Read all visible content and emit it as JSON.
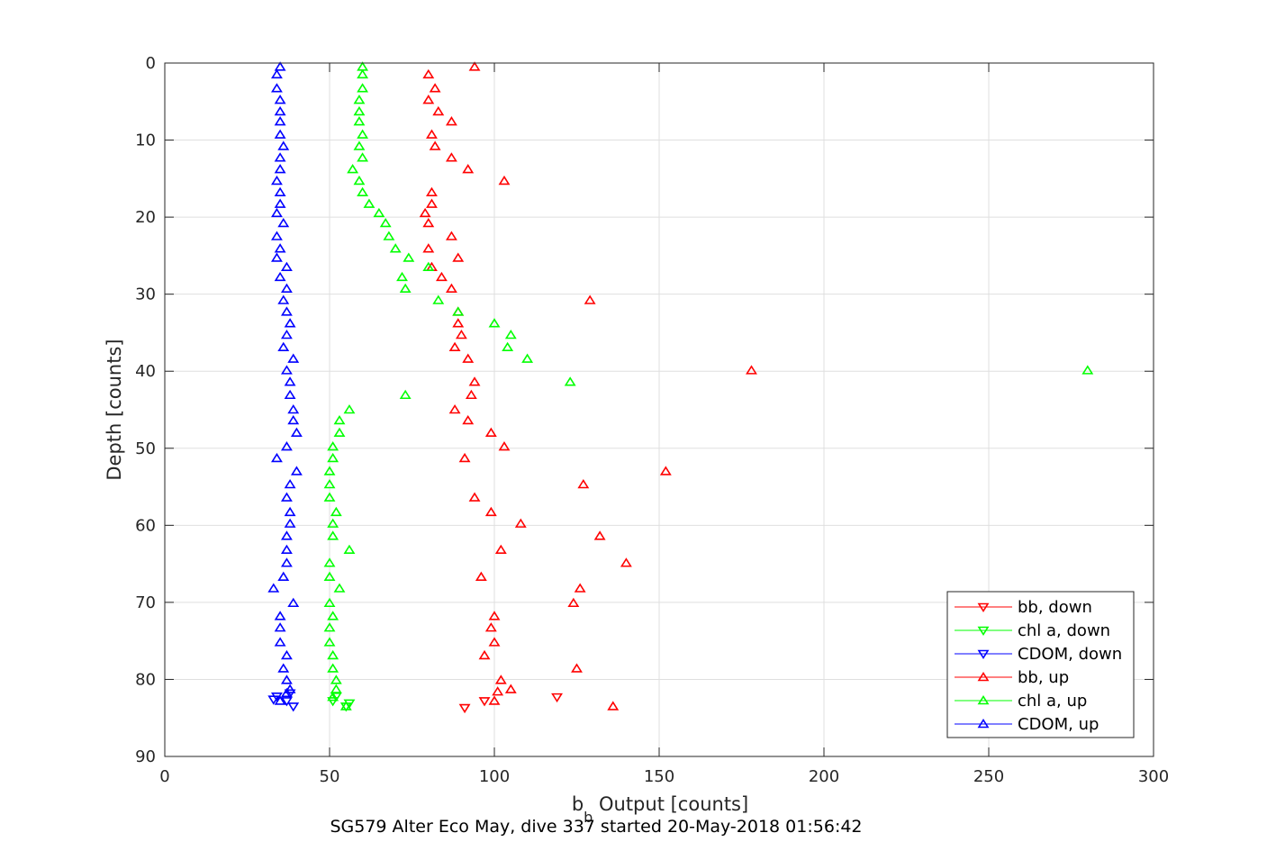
{
  "chart_data": {
    "type": "scatter",
    "title": "",
    "caption": "SG579 Alter Eco May, dive 337 started 20-May-2018 01:56:42",
    "xlabel": {
      "main": "b",
      "sub": "b",
      "rest": " Output [counts]"
    },
    "ylabel": "Depth [counts]",
    "xlim": [
      0,
      300
    ],
    "ylim": [
      0,
      90
    ],
    "y_reversed": true,
    "grid": true,
    "x_ticks": [
      0,
      50,
      100,
      150,
      200,
      250,
      300
    ],
    "y_ticks": [
      0,
      10,
      20,
      30,
      40,
      50,
      60,
      70,
      80,
      90
    ],
    "legend_position": "bottom-right",
    "series": [
      {
        "name": "bb, down",
        "color": "#ff0000",
        "marker": "triangle-down",
        "points": [
          [
            91,
            83.7
          ],
          [
            97,
            82.8
          ],
          [
            119,
            82.3
          ]
        ]
      },
      {
        "name": "chl a, down",
        "color": "#00ff00",
        "marker": "triangle-down",
        "points": [
          [
            51,
            82.8
          ],
          [
            52,
            82.2
          ],
          [
            55,
            83.5
          ],
          [
            56,
            83.1
          ]
        ]
      },
      {
        "name": "CDOM, down",
        "color": "#0000ff",
        "marker": "triangle-down",
        "points": [
          [
            33,
            82.6
          ],
          [
            34,
            82.2
          ],
          [
            37,
            82.8
          ],
          [
            39,
            83.5
          ],
          [
            38,
            81.8
          ]
        ]
      },
      {
        "name": "bb, up",
        "color": "#ff0000",
        "marker": "triangle-up",
        "points": [
          [
            94,
            0.5
          ],
          [
            80,
            1.5
          ],
          [
            82,
            3.3
          ],
          [
            80,
            4.8
          ],
          [
            83,
            6.3
          ],
          [
            87,
            7.6
          ],
          [
            81,
            9.3
          ],
          [
            82,
            10.8
          ],
          [
            87,
            12.3
          ],
          [
            92,
            13.8
          ],
          [
            103,
            15.3
          ],
          [
            81,
            16.8
          ],
          [
            81,
            18.3
          ],
          [
            79,
            19.5
          ],
          [
            80,
            20.8
          ],
          [
            87,
            22.5
          ],
          [
            80,
            24.1
          ],
          [
            89,
            25.3
          ],
          [
            81,
            26.5
          ],
          [
            84,
            27.8
          ],
          [
            87,
            29.3
          ],
          [
            129,
            30.8
          ],
          [
            89,
            32.3
          ],
          [
            89,
            33.8
          ],
          [
            90,
            35.3
          ],
          [
            88,
            36.9
          ],
          [
            92,
            38.4
          ],
          [
            178,
            39.9
          ],
          [
            94,
            41.4
          ],
          [
            93,
            43.1
          ],
          [
            88,
            45.0
          ],
          [
            92,
            46.4
          ],
          [
            99,
            48.0
          ],
          [
            103,
            49.8
          ],
          [
            91,
            51.3
          ],
          [
            152,
            53.0
          ],
          [
            127,
            54.7
          ],
          [
            94,
            56.4
          ],
          [
            99,
            58.3
          ],
          [
            108,
            59.8
          ],
          [
            132,
            61.4
          ],
          [
            102,
            63.2
          ],
          [
            140,
            64.9
          ],
          [
            96,
            66.7
          ],
          [
            126,
            68.2
          ],
          [
            124,
            70.1
          ],
          [
            100,
            71.8
          ],
          [
            99,
            73.3
          ],
          [
            100,
            75.2
          ],
          [
            97,
            76.9
          ],
          [
            125,
            78.6
          ],
          [
            102,
            80.1
          ],
          [
            105,
            81.3
          ],
          [
            101,
            81.6
          ],
          [
            100,
            82.8
          ],
          [
            136,
            83.5
          ]
        ]
      },
      {
        "name": "chl a, up",
        "color": "#00ff00",
        "marker": "triangle-up",
        "points": [
          [
            60,
            0.5
          ],
          [
            60,
            1.5
          ],
          [
            60,
            3.3
          ],
          [
            59,
            4.8
          ],
          [
            59,
            6.3
          ],
          [
            59,
            7.6
          ],
          [
            60,
            9.3
          ],
          [
            59,
            10.8
          ],
          [
            60,
            12.3
          ],
          [
            57,
            13.8
          ],
          [
            59,
            15.3
          ],
          [
            60,
            16.8
          ],
          [
            62,
            18.3
          ],
          [
            65,
            19.5
          ],
          [
            67,
            20.8
          ],
          [
            68,
            22.5
          ],
          [
            70,
            24.1
          ],
          [
            74,
            25.3
          ],
          [
            80,
            26.5
          ],
          [
            72,
            27.8
          ],
          [
            73,
            29.3
          ],
          [
            83,
            30.8
          ],
          [
            89,
            32.3
          ],
          [
            100,
            33.8
          ],
          [
            105,
            35.3
          ],
          [
            104,
            36.9
          ],
          [
            110,
            38.4
          ],
          [
            280,
            39.9
          ],
          [
            123,
            41.4
          ],
          [
            73,
            43.1
          ],
          [
            56,
            45.0
          ],
          [
            53,
            46.4
          ],
          [
            53,
            48.0
          ],
          [
            51,
            49.8
          ],
          [
            51,
            51.3
          ],
          [
            50,
            53.0
          ],
          [
            50,
            54.7
          ],
          [
            50,
            56.4
          ],
          [
            52,
            58.3
          ],
          [
            51,
            59.8
          ],
          [
            51,
            61.4
          ],
          [
            56,
            63.2
          ],
          [
            50,
            64.9
          ],
          [
            50,
            66.7
          ],
          [
            53,
            68.2
          ],
          [
            50,
            70.1
          ],
          [
            51,
            71.8
          ],
          [
            50,
            73.3
          ],
          [
            50,
            75.2
          ],
          [
            51,
            76.9
          ],
          [
            51,
            78.6
          ],
          [
            52,
            80.1
          ],
          [
            52,
            81.3
          ],
          [
            51,
            82.3
          ],
          [
            55,
            83.5
          ]
        ]
      },
      {
        "name": "CDOM, up",
        "color": "#0000ff",
        "marker": "triangle-up",
        "points": [
          [
            35,
            0.5
          ],
          [
            34,
            1.5
          ],
          [
            34,
            3.3
          ],
          [
            35,
            4.8
          ],
          [
            35,
            6.3
          ],
          [
            35,
            7.6
          ],
          [
            35,
            9.3
          ],
          [
            36,
            10.8
          ],
          [
            35,
            12.3
          ],
          [
            35,
            13.8
          ],
          [
            34,
            15.3
          ],
          [
            35,
            16.8
          ],
          [
            35,
            18.3
          ],
          [
            34,
            19.5
          ],
          [
            36,
            20.8
          ],
          [
            34,
            22.5
          ],
          [
            35,
            24.1
          ],
          [
            34,
            25.3
          ],
          [
            37,
            26.5
          ],
          [
            35,
            27.8
          ],
          [
            37,
            29.3
          ],
          [
            36,
            30.8
          ],
          [
            37,
            32.3
          ],
          [
            38,
            33.8
          ],
          [
            37,
            35.3
          ],
          [
            36,
            36.9
          ],
          [
            39,
            38.4
          ],
          [
            37,
            39.9
          ],
          [
            38,
            41.4
          ],
          [
            38,
            43.1
          ],
          [
            39,
            45.0
          ],
          [
            39,
            46.4
          ],
          [
            40,
            48.0
          ],
          [
            37,
            49.8
          ],
          [
            34,
            51.3
          ],
          [
            40,
            53.0
          ],
          [
            38,
            54.7
          ],
          [
            37,
            56.4
          ],
          [
            38,
            58.3
          ],
          [
            38,
            59.8
          ],
          [
            37,
            61.4
          ],
          [
            37,
            63.2
          ],
          [
            37,
            64.9
          ],
          [
            36,
            66.7
          ],
          [
            33,
            68.2
          ],
          [
            39,
            70.1
          ],
          [
            35,
            71.8
          ],
          [
            35,
            73.3
          ],
          [
            35,
            75.2
          ],
          [
            37,
            76.9
          ],
          [
            36,
            78.6
          ],
          [
            37,
            80.1
          ],
          [
            38,
            81.3
          ],
          [
            37,
            81.8
          ],
          [
            35,
            82.8
          ]
        ]
      }
    ]
  }
}
